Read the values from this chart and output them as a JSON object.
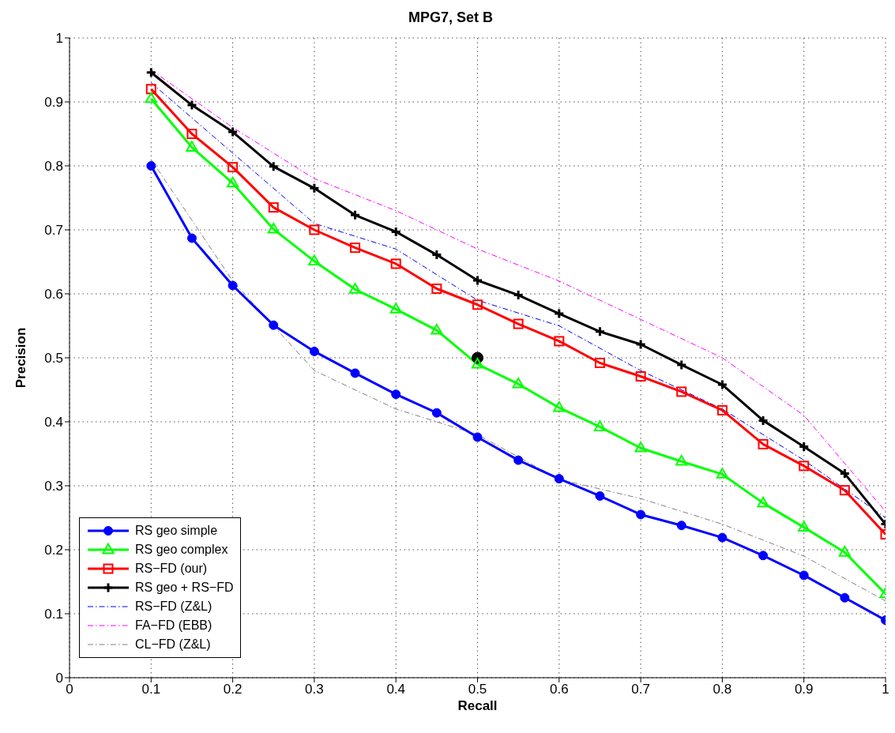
{
  "chart_data": {
    "type": "line",
    "title": "MPG7, Set B",
    "xlabel": "Recall",
    "ylabel": "Precision",
    "xlim": [
      0,
      1
    ],
    "xticks": [
      0,
      0.1,
      0.2,
      0.3,
      0.4,
      0.5,
      0.6,
      0.7,
      0.8,
      0.9,
      1
    ],
    "ylim": [
      0,
      1
    ],
    "yticks": [
      0,
      0.1,
      0.2,
      0.3,
      0.4,
      0.5,
      0.6,
      0.7,
      0.8,
      0.9,
      1
    ],
    "grid": true,
    "legend": "bottom left",
    "x": [
      0.1,
      0.15,
      0.2,
      0.25,
      0.3,
      0.35,
      0.4,
      0.45,
      0.5,
      0.55,
      0.6,
      0.65,
      0.7,
      0.75,
      0.8,
      0.85,
      0.9,
      0.95,
      1
    ],
    "series": [
      {
        "name": "RS geo simple",
        "color": "#0000ff",
        "marker": "circle",
        "line_style": "solid",
        "values": [
          0.8,
          0.687,
          0.613,
          0.551,
          0.51,
          0.476,
          0.443,
          0.414,
          0.376,
          0.34,
          0.311,
          0.284,
          0.255,
          0.238,
          0.219,
          0.191,
          0.16,
          0.125,
          0.09
        ]
      },
      {
        "name": "RS geo complex",
        "color": "#00ff00",
        "marker": "triangle",
        "line_style": "solid",
        "values": [
          0.905,
          0.829,
          0.773,
          0.701,
          0.651,
          0.607,
          0.576,
          0.543,
          0.49,
          0.459,
          0.422,
          0.392,
          0.359,
          0.338,
          0.318,
          0.273,
          0.235,
          0.196,
          0.131
        ]
      },
      {
        "name": "RS−FD (our)",
        "color": "#ff0000",
        "marker": "square",
        "line_style": "solid",
        "values": [
          0.92,
          0.85,
          0.798,
          0.735,
          0.7,
          0.672,
          0.647,
          0.608,
          0.583,
          0.553,
          0.526,
          0.492,
          0.471,
          0.447,
          0.418,
          0.365,
          0.331,
          0.293,
          0.224
        ]
      },
      {
        "name": "RS geo + RS−FD",
        "color": "#000000",
        "marker": "cross",
        "line_style": "solid",
        "values": [
          0.946,
          0.895,
          0.853,
          0.799,
          0.765,
          0.723,
          0.697,
          0.661,
          0.621,
          0.598,
          0.569,
          0.541,
          0.521,
          0.489,
          0.458,
          0.402,
          0.361,
          0.319,
          0.24
        ]
      },
      {
        "name": "RS−FD (Z&L)",
        "color": "#0000ff",
        "marker": "none",
        "line_style": "dashed",
        "x": [
          0.1,
          0.2,
          0.3,
          0.4,
          0.5,
          0.6,
          0.7,
          0.8,
          0.9,
          1
        ],
        "values": [
          0.93,
          0.82,
          0.71,
          0.67,
          0.59,
          0.55,
          0.48,
          0.42,
          0.34,
          0.25
        ]
      },
      {
        "name": "FA−FD (EBB)",
        "color": "#ff00ff",
        "marker": "none",
        "line_style": "dashed",
        "x": [
          0.1,
          0.2,
          0.3,
          0.4,
          0.5,
          0.6,
          0.7,
          0.8,
          0.9,
          1
        ],
        "values": [
          0.95,
          0.86,
          0.78,
          0.73,
          0.67,
          0.62,
          0.56,
          0.5,
          0.41,
          0.26
        ]
      },
      {
        "name": "CL−FD (Z&L)",
        "color": "#808080",
        "marker": "none",
        "line_style": "dashed",
        "x": [
          0.1,
          0.2,
          0.3,
          0.4,
          0.5,
          0.6,
          0.7,
          0.8,
          0.9,
          1
        ],
        "values": [
          0.81,
          0.62,
          0.48,
          0.42,
          0.38,
          0.31,
          0.28,
          0.24,
          0.19,
          0.12
        ]
      },
      {
        "type": "scatter",
        "color": "#000000",
        "marker": "circle",
        "x": [
          0.5
        ],
        "values": [
          0.5
        ]
      }
    ]
  }
}
